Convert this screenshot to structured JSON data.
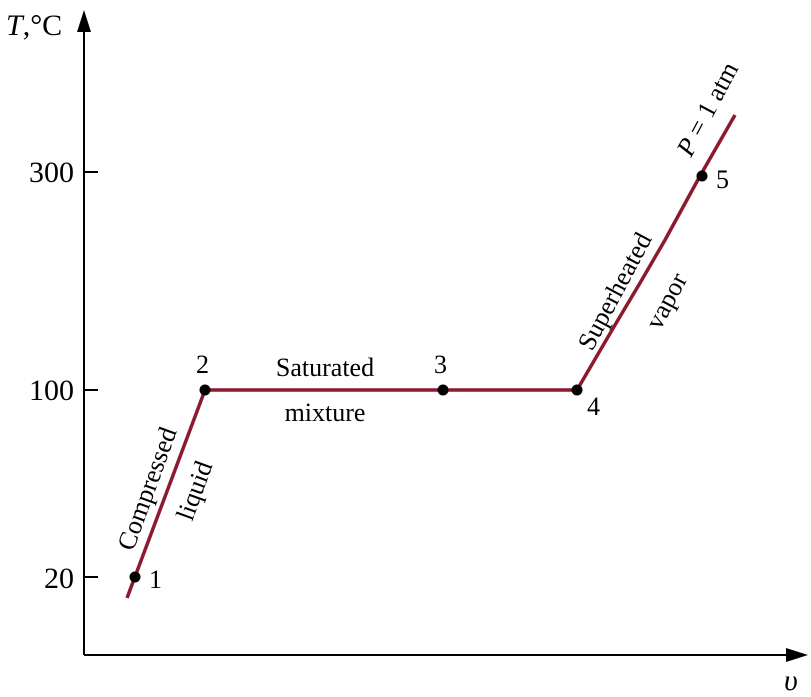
{
  "axes": {
    "y_label_var": "T",
    "y_label_unit": ",°C",
    "x_label": "υ",
    "y_ticks": [
      "300",
      "100",
      "20"
    ]
  },
  "points": [
    "1",
    "2",
    "3",
    "4",
    "5"
  ],
  "regions": {
    "compressed_line1": "Compressed",
    "compressed_line2": "liquid",
    "saturated_line1": "Saturated",
    "saturated_line2": "mixture",
    "superheated_line1": "Superheated",
    "superheated_line2": "vapor"
  },
  "pressure_label": {
    "var": "P",
    "rest": " = 1 atm"
  },
  "colors": {
    "process_line": "#8b1a2e",
    "axis": "#000000",
    "point": "#000000"
  }
}
